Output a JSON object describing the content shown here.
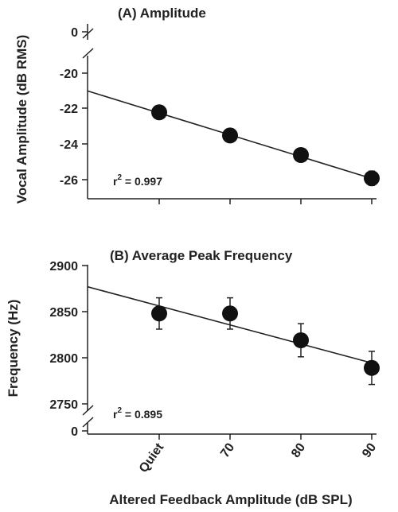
{
  "chart_data": [
    {
      "type": "scatter",
      "title": "(A) Amplitude",
      "ylabel": "Vocal Amplitude (dB RMS)",
      "categories": [
        "Quiet",
        "70",
        "80",
        "90"
      ],
      "values": [
        -22.2,
        -23.5,
        -24.6,
        -25.9
      ],
      "errors": [
        0.2,
        0.25,
        0.35,
        0.4
      ],
      "yticks": [
        "0",
        "-20",
        "-22",
        "-24",
        "-26"
      ],
      "ylim": [
        -27,
        -20
      ],
      "axis_break": true,
      "fit_line": {
        "left_value": -21.0,
        "right_value": -26.0
      },
      "annotation": {
        "prefix": "r",
        "sup": "2",
        "value": " = 0.997"
      }
    },
    {
      "type": "scatter",
      "title": "(B) Average Peak Frequency",
      "ylabel": "Frequency (Hz)",
      "categories": [
        "Quiet",
        "70",
        "80",
        "90"
      ],
      "values": [
        2848,
        2848,
        2819,
        2789
      ],
      "errors": [
        17,
        17,
        18,
        18
      ],
      "yticks": [
        "2900",
        "2850",
        "2800",
        "2750",
        "0"
      ],
      "ylim": [
        2750,
        2900
      ],
      "axis_break": true,
      "fit_line": {
        "left_value": 2877,
        "right_value": 2793
      },
      "annotation": {
        "prefix": "r",
        "sup": "2",
        "value": " = 0.895"
      }
    }
  ],
  "xlabel": "Altered Feedback Amplitude (dB SPL)",
  "colors": {
    "marker": "#111111",
    "line": "#222222",
    "text": "#222222",
    "background": "#ffffff"
  }
}
